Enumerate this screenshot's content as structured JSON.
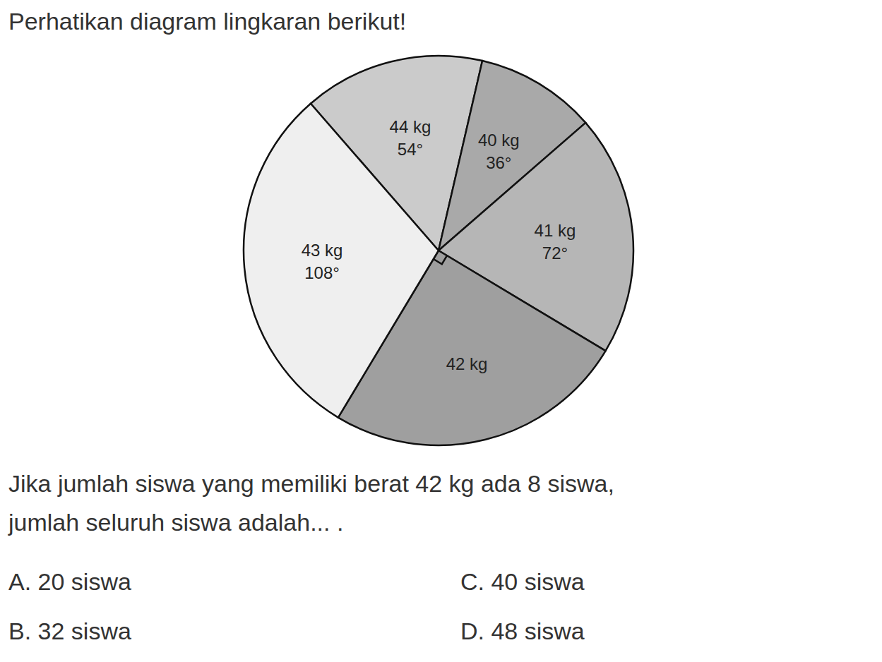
{
  "heading": "Perhatikan diagram lingkaran berikut!",
  "chart_data": {
    "type": "pie",
    "categories": [
      "44 kg",
      "40 kg",
      "41 kg",
      "42 kg",
      "43 kg"
    ],
    "values": [
      54,
      36,
      72,
      90,
      108
    ],
    "value_labels": [
      "54°",
      "36°",
      "72°",
      null,
      "108°"
    ],
    "colors": [
      "#cbcbcb",
      "#a9a9a9",
      "#b6b6b6",
      "#9f9f9f",
      "#efefef"
    ]
  },
  "question": {
    "lines": [
      "Jika jumlah siswa yang memiliki berat 42 kg ada 8 siswa,",
      "jumlah seluruh siswa adalah... ."
    ]
  },
  "options": [
    "A. 20 siswa",
    "B. 32 siswa",
    "C. 40 siswa",
    "D. 48 siswa"
  ]
}
